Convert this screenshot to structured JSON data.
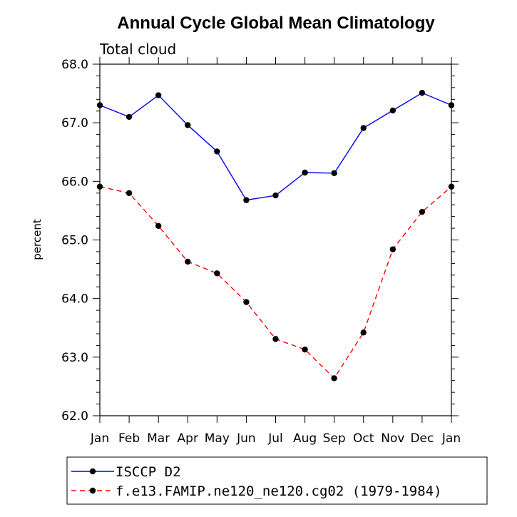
{
  "chart_data": {
    "type": "line",
    "title": "Annual Cycle Global Mean Climatology",
    "subtitle": "Total cloud",
    "xlabel": "",
    "ylabel": "percent",
    "categories": [
      "Jan",
      "Feb",
      "Mar",
      "Apr",
      "May",
      "Jun",
      "Jul",
      "Aug",
      "Sep",
      "Oct",
      "Nov",
      "Dec",
      "Jan"
    ],
    "ylim": [
      62.0,
      68.0
    ],
    "yticks": [
      "62.0",
      "63.0",
      "64.0",
      "65.0",
      "66.0",
      "67.0",
      "68.0"
    ],
    "grid": false,
    "legend_position": "bottom",
    "series": [
      {
        "name": "ISCCP D2",
        "color": "#0000ff",
        "dash": "solid",
        "values": [
          67.3,
          67.1,
          67.47,
          66.96,
          66.51,
          65.68,
          65.76,
          66.15,
          66.14,
          66.91,
          67.21,
          67.51,
          67.3
        ]
      },
      {
        "name": "f.e13.FAMIP.ne120_ne120.cg02 (1979-1984)",
        "color": "#ff0000",
        "dash": "dashed",
        "values": [
          65.91,
          65.8,
          65.24,
          64.63,
          64.43,
          63.94,
          63.31,
          63.13,
          62.64,
          63.42,
          64.84,
          65.48,
          65.91
        ]
      }
    ]
  }
}
